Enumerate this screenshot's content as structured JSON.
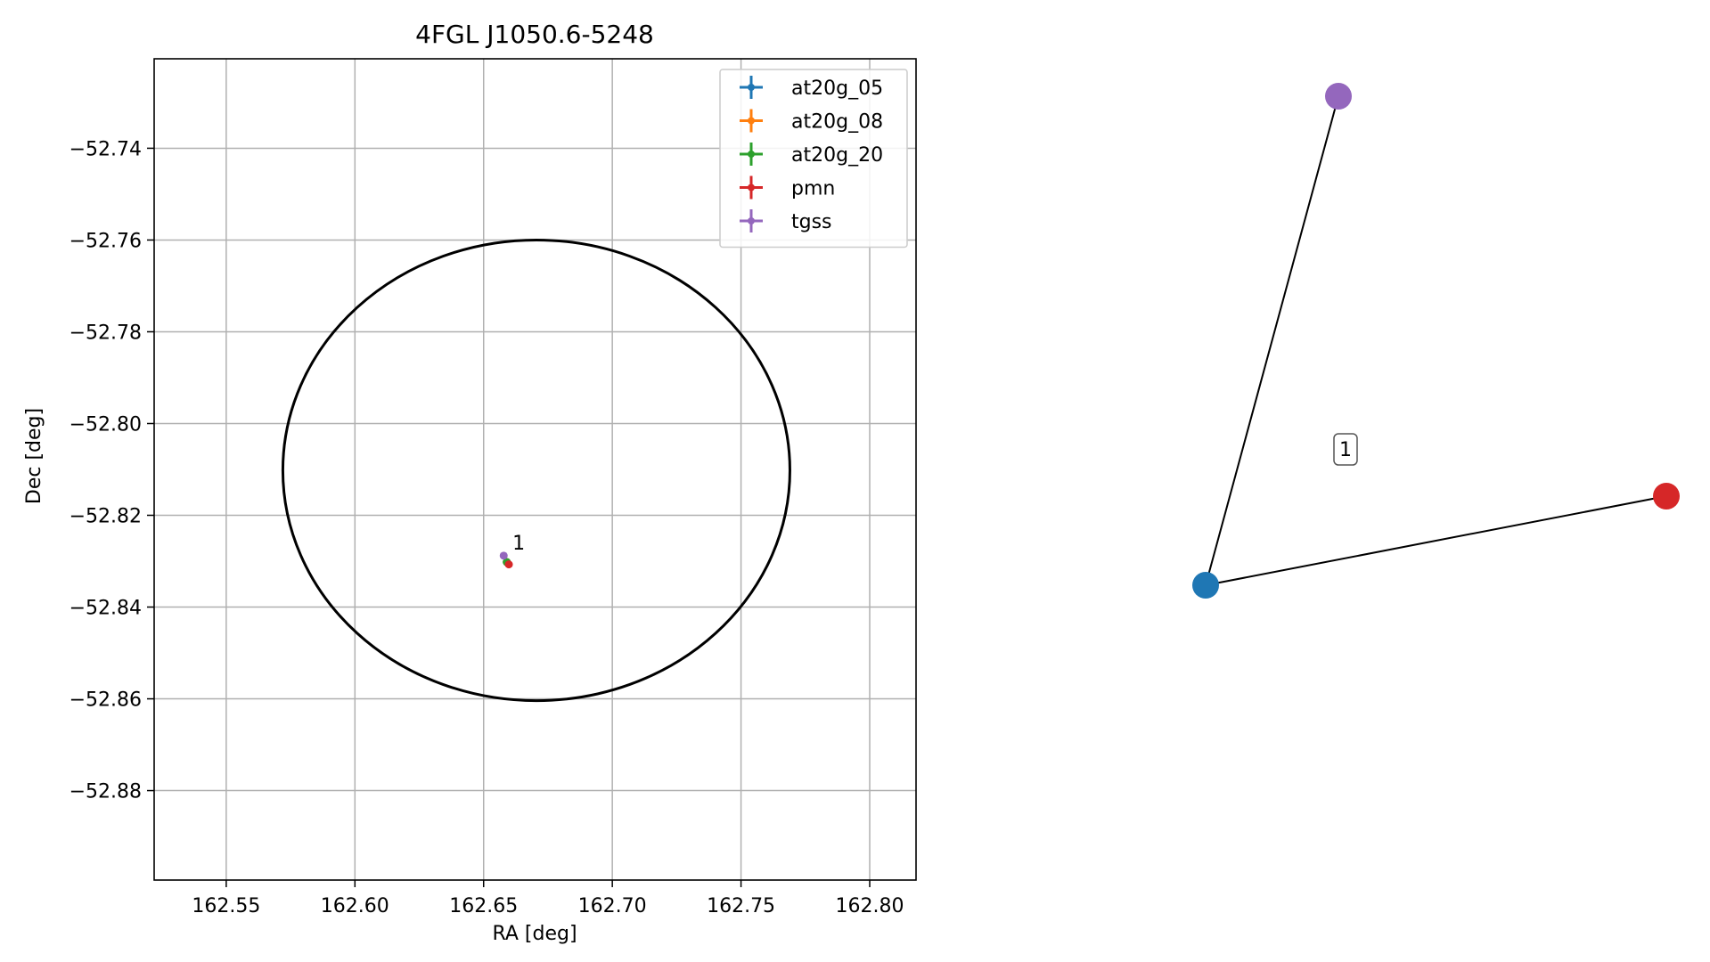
{
  "chart_data": [
    {
      "type": "scatter",
      "title": "4FGL J1050.6-5248",
      "xlabel": "RA [deg]",
      "ylabel": "Dec [deg]",
      "xlim": [
        162.522,
        162.818
      ],
      "ylim": [
        -52.8995,
        -52.7205
      ],
      "xticks": [
        162.55,
        162.6,
        162.65,
        162.7,
        162.75,
        162.8
      ],
      "xtick_labels": [
        "162.55",
        "162.60",
        "162.65",
        "162.70",
        "162.75",
        "162.80"
      ],
      "yticks": [
        -52.74,
        -52.76,
        -52.78,
        -52.8,
        -52.82,
        -52.84,
        -52.86,
        -52.88
      ],
      "ytick_labels": [
        "−52.74",
        "−52.76",
        "−52.78",
        "−52.80",
        "−52.82",
        "−52.84",
        "−52.86",
        "−52.88"
      ],
      "grid": true,
      "legend_position": "top-right",
      "ellipse": {
        "center": [
          162.6705,
          -52.8102
        ],
        "ra_halfwidth": 0.0985,
        "dec_halfwidth": 0.0502,
        "color": "#000000"
      },
      "series": [
        {
          "name": "at20g_05",
          "color": "#1f77b4",
          "points": [
            {
              "x": 162.659,
              "y": -52.8302
            }
          ]
        },
        {
          "name": "at20g_08",
          "color": "#ff7f0e",
          "points": [
            {
              "x": 162.659,
              "y": -52.8302
            }
          ]
        },
        {
          "name": "at20g_20",
          "color": "#2ca02c",
          "points": [
            {
              "x": 162.659,
              "y": -52.8302
            }
          ]
        },
        {
          "name": "pmn",
          "color": "#d62728",
          "points": [
            {
              "x": 162.6598,
              "y": -52.8307
            }
          ]
        },
        {
          "name": "tgss",
          "color": "#9467bd",
          "points": [
            {
              "x": 162.6578,
              "y": -52.8288
            }
          ]
        }
      ],
      "annotations": [
        {
          "text": "1",
          "x": 162.6612,
          "y": -52.8275
        }
      ]
    },
    {
      "type": "network",
      "nodes": [
        {
          "id": "blue",
          "color": "#1f77b4"
        },
        {
          "id": "purple",
          "color": "#9467bd"
        },
        {
          "id": "red",
          "color": "#d62728"
        }
      ],
      "edges": [
        {
          "from": "blue",
          "to": "purple"
        },
        {
          "from": "blue",
          "to": "red"
        }
      ],
      "labels": [
        {
          "text": "1"
        }
      ]
    }
  ]
}
